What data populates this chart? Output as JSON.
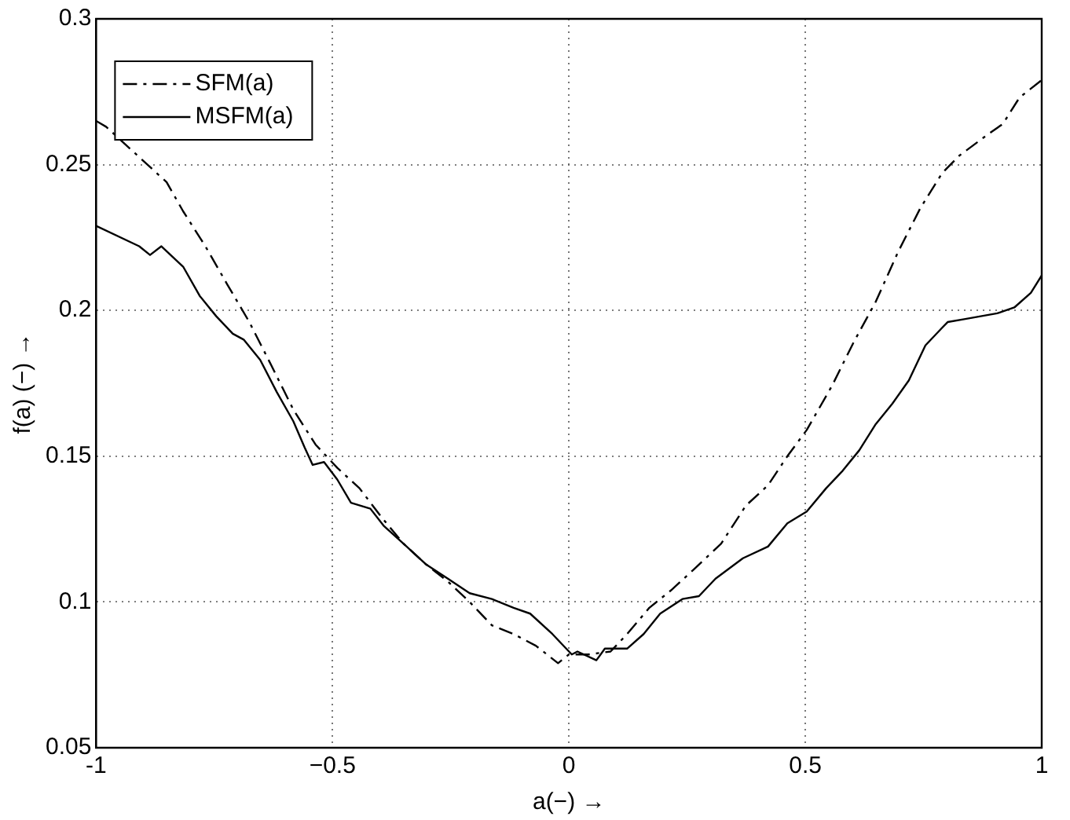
{
  "chart_data": {
    "type": "line",
    "xlabel": "a(−) →",
    "ylabel": "f(a) (−) →",
    "xlim": [
      -1,
      1
    ],
    "xticks": [
      -1,
      {
        "value": -0.5,
        "label": "−0.5"
      },
      0,
      0.5,
      1
    ],
    "ylim": [
      0.05,
      0.3
    ],
    "yticks": [
      0.05,
      0.1,
      0.15,
      0.2,
      0.25,
      0.3
    ],
    "grid": true,
    "legend": "top left",
    "marker": "none",
    "series": [
      {
        "name": "SFM(a)",
        "color": "#000000",
        "line_style": "dashed",
        "x": [
          -1,
          -0.979,
          -0.851,
          -0.816,
          -0.769,
          -0.723,
          -0.676,
          -0.629,
          -0.583,
          -0.536,
          -0.49,
          -0.443,
          -0.396,
          -0.35,
          -0.303,
          -0.256,
          -0.21,
          -0.163,
          -0.117,
          -0.07,
          -0.023,
          0,
          0.041,
          0.088,
          0.123,
          0.17,
          0.216,
          0.263,
          0.322,
          0.374,
          0.421,
          0.462,
          0.503,
          0.556,
          0.602,
          0.649,
          0.696,
          0.743,
          0.789,
          0.825,
          0.883,
          0.918,
          0.953,
          1
        ],
        "values": [
          0.265,
          0.263,
          0.244,
          0.234,
          0.222,
          0.209,
          0.196,
          0.181,
          0.166,
          0.154,
          0.146,
          0.139,
          0.129,
          0.12,
          0.113,
          0.107,
          0.1,
          0.092,
          0.089,
          0.085,
          0.079,
          0.082,
          0.082,
          0.083,
          0.089,
          0.098,
          0.104,
          0.111,
          0.12,
          0.133,
          0.14,
          0.15,
          0.159,
          0.174,
          0.189,
          0.203,
          0.22,
          0.235,
          0.247,
          0.253,
          0.26,
          0.264,
          0.273,
          0.279
        ]
      },
      {
        "name": "MSFM(a)",
        "color": "#000000",
        "line_style": "solid",
        "x": [
          -1,
          -0.909,
          -0.886,
          -0.862,
          -0.816,
          -0.781,
          -0.746,
          -0.711,
          -0.688,
          -0.653,
          -0.618,
          -0.583,
          -0.559,
          -0.542,
          -0.518,
          -0.49,
          -0.461,
          -0.42,
          -0.391,
          -0.35,
          -0.303,
          -0.256,
          -0.21,
          -0.163,
          -0.117,
          -0.082,
          -0.035,
          0.006,
          0.018,
          0.058,
          0.076,
          0.123,
          0.158,
          0.193,
          0.24,
          0.275,
          0.31,
          0.368,
          0.421,
          0.462,
          0.503,
          0.544,
          0.579,
          0.614,
          0.649,
          0.684,
          0.719,
          0.754,
          0.789,
          0.801,
          0.836,
          0.871,
          0.906,
          0.942,
          0.977,
          1
        ],
        "values": [
          0.229,
          0.222,
          0.219,
          0.222,
          0.215,
          0.205,
          0.198,
          0.192,
          0.19,
          0.183,
          0.172,
          0.162,
          0.153,
          0.147,
          0.148,
          0.142,
          0.134,
          0.132,
          0.126,
          0.12,
          0.113,
          0.108,
          0.103,
          0.101,
          0.098,
          0.096,
          0.089,
          0.082,
          0.083,
          0.08,
          0.084,
          0.084,
          0.089,
          0.096,
          0.101,
          0.102,
          0.108,
          0.115,
          0.119,
          0.127,
          0.131,
          0.139,
          0.145,
          0.152,
          0.161,
          0.168,
          0.176,
          0.188,
          0.194,
          0.196,
          0.197,
          0.198,
          0.199,
          0.201,
          0.206,
          0.212
        ]
      }
    ]
  }
}
